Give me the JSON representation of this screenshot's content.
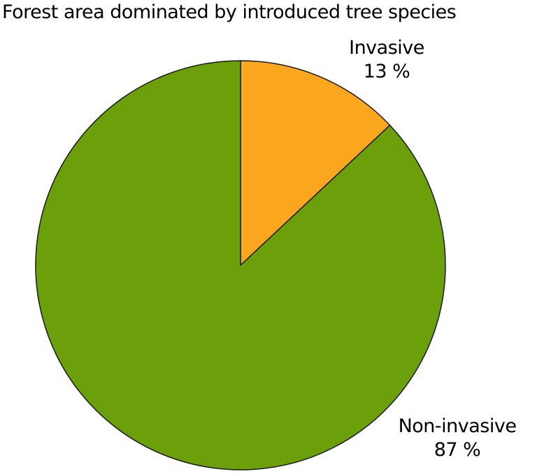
{
  "title": "Forest area dominated by introduced tree species",
  "chart_data": {
    "type": "pie",
    "title": "Forest area dominated by introduced tree species",
    "slices": [
      {
        "label": "Invasive",
        "value": 13,
        "pct_label": "13 %",
        "color": "#FBA71E"
      },
      {
        "label": "Non-invasive",
        "value": 87,
        "pct_label": "87 %",
        "color": "#6CA00A"
      }
    ],
    "start_angle_deg": 0,
    "direction": "clockwise",
    "stroke_color": "#1A1A1A",
    "background": "#FFFFFF",
    "legend": "none",
    "labels_position": "outside"
  }
}
